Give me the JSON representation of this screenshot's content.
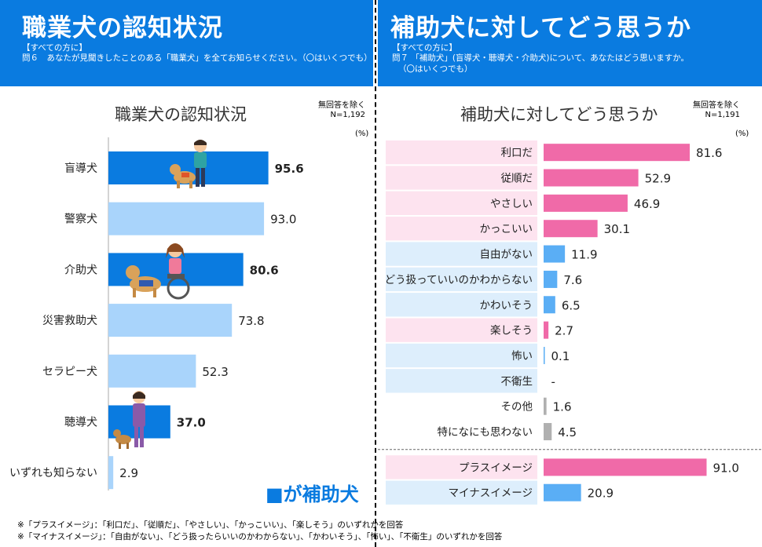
{
  "header_left": {
    "title": "職業犬の認知状況",
    "target": "【すべての方に】",
    "question": "問６　あなたが見聞きしたことのある「職業犬」を全てお知らせください。（〇はいくつでも）"
  },
  "header_right": {
    "title": "補助犬に対してどう思うか",
    "target": "【すべての方に】",
    "question1": "問７ 「補助犬」(盲導犬・聴導犬・介助犬)について、あなたはどう思いますか。",
    "question2": "（〇はいくつでも）"
  },
  "left_chart": {
    "note1": "無回答を除く",
    "note2": "N=1,192",
    "unit": "(%)",
    "legend": "■が補助犬"
  },
  "right_chart": {
    "note1": "無回答を除く",
    "note2": "N=1,191",
    "unit": "(%)"
  },
  "footnotes": {
    "line1": "※「プラスイメージ」：「利口だ」、「従順だ」、「やさしい」、「かっこいい」、「楽しそう」のいずれかを回答",
    "line2": "※「マイナスイメージ」：「自由がない」、「どう扱ったらいいのかわからない」、「かわいそう」、「怖い」、「不衛生」のいずれかを回答"
  },
  "colors": {
    "header_blue": "#0a7be0",
    "assist_dark": "#0a7be0",
    "other_light": "#a9d4fb",
    "pink": "#f06aa8",
    "light_blue_bar": "#5aaef5",
    "gray": "#b0b0b0",
    "pink_bg": "#fde3ef",
    "blue_bg": "#ddeefc"
  },
  "chart_data": [
    {
      "type": "bar",
      "title": "職業犬の認知状況",
      "orientation": "horizontal",
      "categories": [
        "盲導犬",
        "警察犬",
        "介助犬",
        "災害救助犬",
        "セラピー犬",
        "聴導犬",
        "いずれも知らない"
      ],
      "values": [
        95.6,
        93.0,
        80.6,
        73.8,
        52.3,
        37.0,
        2.9
      ],
      "labels": [
        "95.6",
        "93.0",
        "80.6",
        "73.8",
        "52.3",
        "37.0",
        "2.9"
      ],
      "highlight": [
        true,
        false,
        true,
        false,
        false,
        true,
        false
      ],
      "xlim": [
        0,
        100
      ]
    },
    {
      "type": "bar",
      "title": "補助犬に対してどう思うか",
      "orientation": "horizontal",
      "categories": [
        "利口だ",
        "従順だ",
        "やさしい",
        "かっこいい",
        "自由がない",
        "どう扱っていいのかわからない",
        "かわいそう",
        "楽しそう",
        "怖い",
        "不衛生",
        "その他",
        "特になにも思わない",
        "プラスイメージ",
        "マイナスイメージ"
      ],
      "values": [
        81.6,
        52.9,
        46.9,
        30.1,
        11.9,
        7.6,
        6.5,
        2.7,
        0.1,
        0,
        1.6,
        4.5,
        91.0,
        20.9
      ],
      "labels": [
        "81.6",
        "52.9",
        "46.9",
        "30.1",
        "11.9",
        "7.6",
        "6.5",
        "2.7",
        "0.1",
        "-",
        "1.6",
        "4.5",
        "91.0",
        "20.9"
      ],
      "groups": [
        "plus",
        "plus",
        "plus",
        "plus",
        "minus",
        "minus",
        "minus",
        "plus",
        "minus",
        "minus",
        "other",
        "other",
        "plus",
        "minus"
      ],
      "xlim": [
        0,
        100
      ]
    }
  ]
}
